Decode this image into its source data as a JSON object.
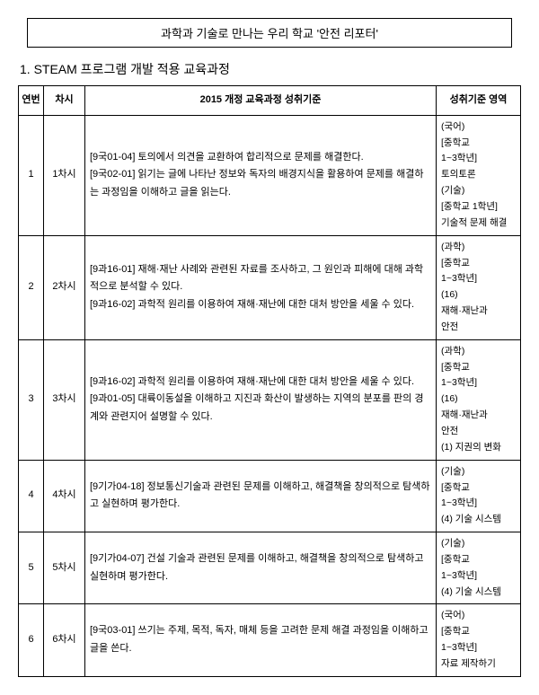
{
  "title": "과학과 기술로 만나는 우리 학교 '안전 리포터'",
  "section": "1. STEAM 프로그램 개발 적용 교육과정",
  "headers": {
    "no": "연번",
    "session": "차시",
    "standard": "2015 개정 교육과정 성취기준",
    "area": "성취기준 영역"
  },
  "rows": [
    {
      "no": "1",
      "session": "1차시",
      "standard": "[9국01-04] 토의에서 의견을 교환하여 합리적으로 문제를 해결한다.\n[9국02-01] 읽기는 글에 나타난 정보와 독자의 배경지식을 활용하여 문제를 해결하는 과정임을 이해하고 글을 읽는다.",
      "area": "(국어)\n[중학교\n1~3학년]\n토의토론\n(기술)\n[중학교 1학년]\n기술적 문제 해결"
    },
    {
      "no": "2",
      "session": "2차시",
      "standard": "[9과16-01] 재해·재난 사례와 관련된 자료를 조사하고, 그 원인과 피해에 대해 과학적으로 분석할 수 있다.\n[9과16-02] 과학적 원리를 이용하여 재해·재난에 대한 대처 방안을 세울 수 있다.",
      "area": "(과학)\n[중학교\n1~3학년]\n(16)\n재해·재난과\n안전"
    },
    {
      "no": "3",
      "session": "3차시",
      "standard": "[9과16-02] 과학적 원리를 이용하여 재해·재난에 대한 대처 방안을 세울 수 있다.\n[9과01-05] 대륙이동설을 이해하고 지진과 화산이 발생하는 지역의 분포를 판의 경계와 관련지어 설명할 수 있다.",
      "area": "(과학)\n[중학교\n1~3학년]\n(16)\n재해·재난과\n안전\n(1) 지권의 변화"
    },
    {
      "no": "4",
      "session": "4차시",
      "standard": "[9기가04-18] 정보통신기술과 관련된 문제를 이해하고, 해결책을 창의적으로 탐색하고 실현하며 평가한다.",
      "area": "(기술)\n[중학교\n1~3학년]\n(4) 기술 시스템"
    },
    {
      "no": "5",
      "session": "5차시",
      "standard": "[9기가04-07] 건설 기술과 관련된 문제를 이해하고, 해결책을 창의적으로 탐색하고 실현하며 평가한다.",
      "area": "(기술)\n[중학교\n1~3학년]\n(4) 기술 시스템"
    },
    {
      "no": "6",
      "session": "6차시",
      "standard": "[9국03-01] 쓰기는 주제, 목적, 독자, 매체 등을 고려한 문제 해결 과정임을 이해하고 글을 쓴다.",
      "area": "(국어)\n[중학교\n1~3학년]\n자료 제작하기"
    }
  ]
}
